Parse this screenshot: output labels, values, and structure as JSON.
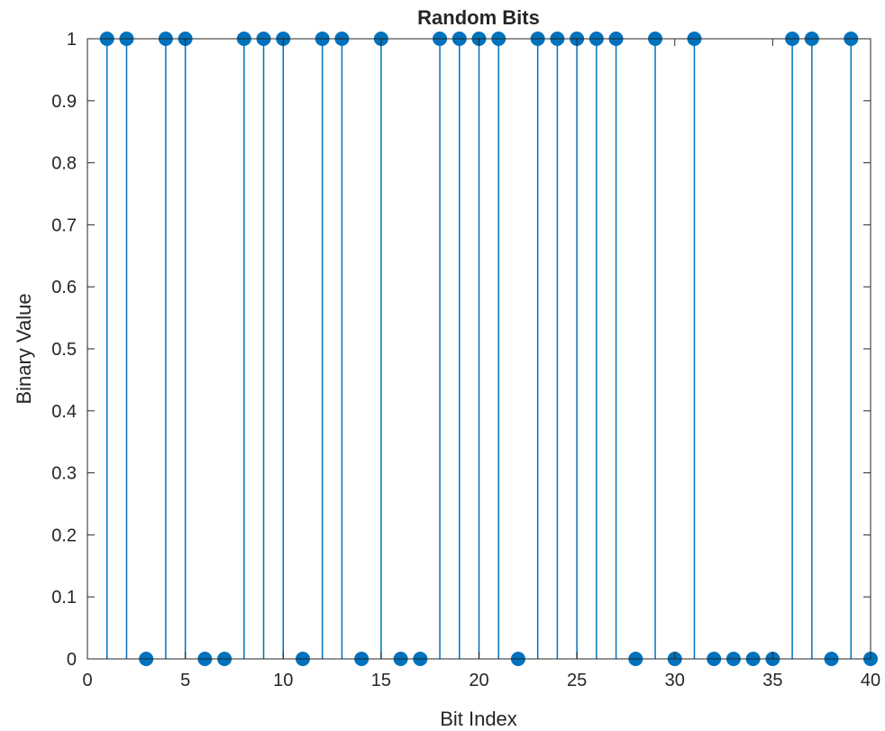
{
  "chart_data": {
    "type": "stem",
    "title": "Random Bits",
    "xlabel": "Bit Index",
    "ylabel": "Binary Value",
    "xlim": [
      0,
      40
    ],
    "ylim": [
      0,
      1
    ],
    "xticks": [
      "0",
      "5",
      "10",
      "15",
      "20",
      "25",
      "30",
      "35",
      "40"
    ],
    "yticks": [
      "0",
      "0.1",
      "0.2",
      "0.3",
      "0.4",
      "0.5",
      "0.6",
      "0.7",
      "0.8",
      "0.9",
      "1"
    ],
    "grid": false,
    "x": [
      1,
      2,
      3,
      4,
      5,
      6,
      7,
      8,
      9,
      10,
      11,
      12,
      13,
      14,
      15,
      16,
      17,
      18,
      19,
      20,
      21,
      22,
      23,
      24,
      25,
      26,
      27,
      28,
      29,
      30,
      31,
      32,
      33,
      34,
      35,
      36,
      37,
      38,
      39,
      40
    ],
    "values": [
      1,
      1,
      0,
      1,
      1,
      0,
      0,
      1,
      1,
      1,
      0,
      1,
      1,
      0,
      1,
      0,
      0,
      1,
      1,
      1,
      1,
      0,
      1,
      1,
      1,
      1,
      1,
      0,
      1,
      0,
      1,
      0,
      0,
      0,
      0,
      1,
      1,
      0,
      1,
      0
    ],
    "color": "#0072BD"
  }
}
